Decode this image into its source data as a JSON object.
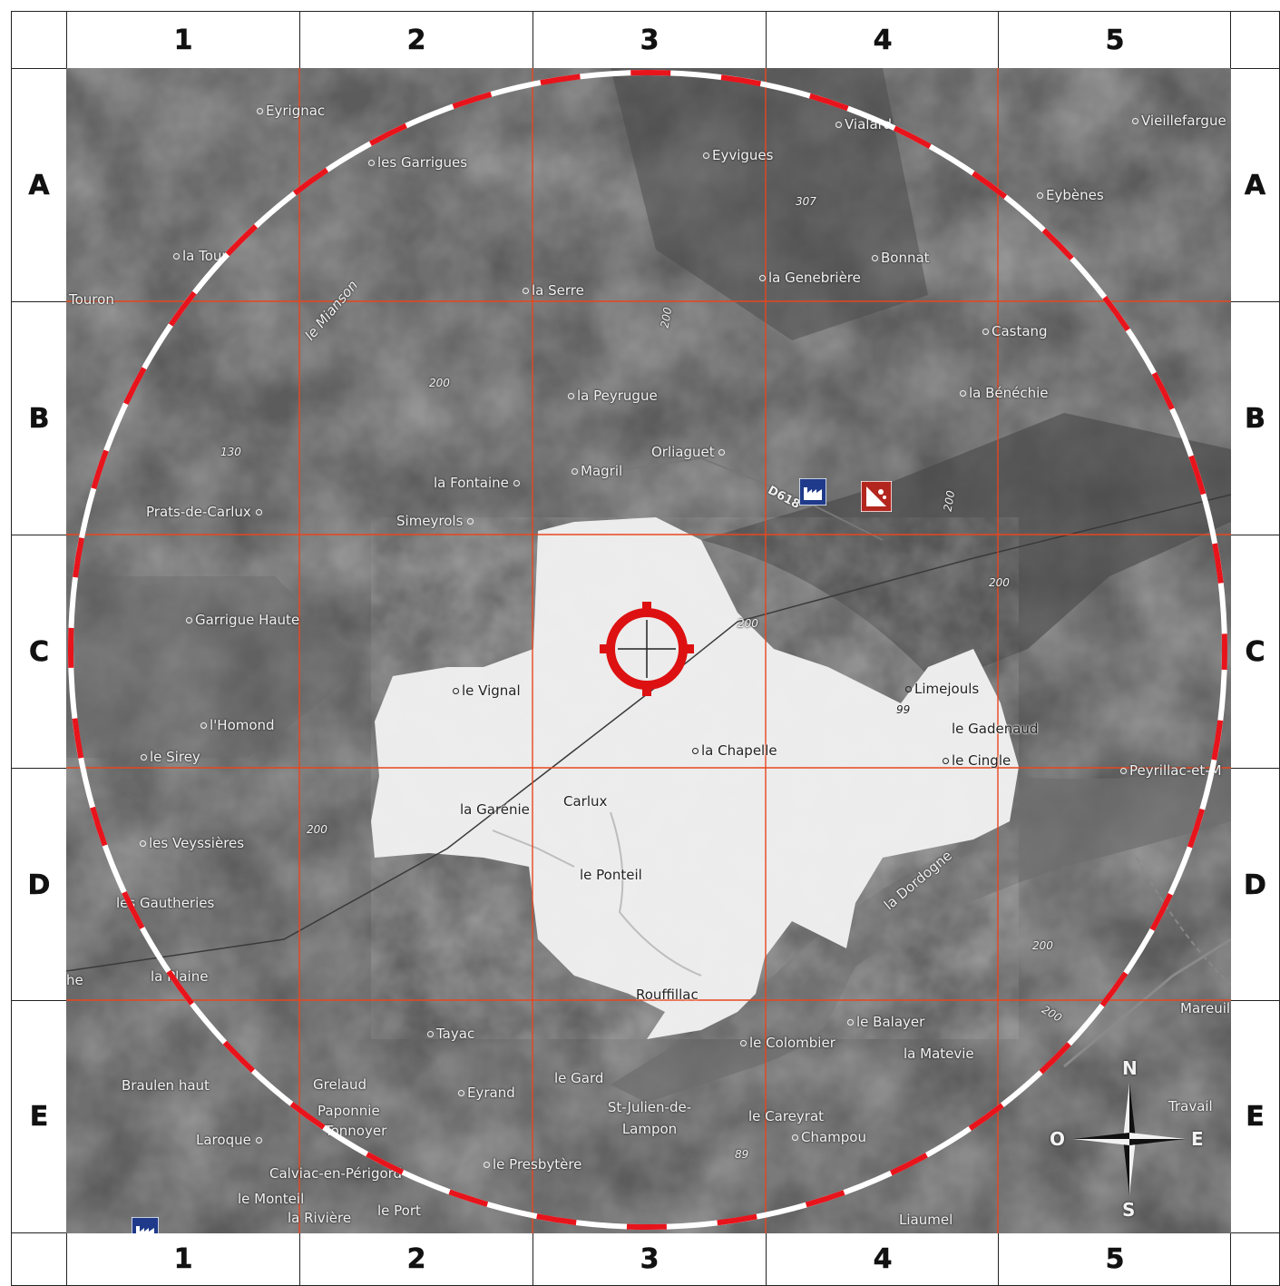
{
  "columns": [
    "1",
    "2",
    "3",
    "4",
    "5"
  ],
  "rows": [
    "A",
    "B",
    "C",
    "D",
    "E"
  ],
  "compass": {
    "north": "N",
    "south": "S",
    "east": "E",
    "west": "O"
  },
  "road_label": "D618",
  "river_label": "la Dordogne",
  "elevations": [
    "307",
    "200",
    "130",
    "200",
    "200",
    "200",
    "200",
    "200",
    "99",
    "89",
    "200",
    "200"
  ],
  "places": [
    "Eyrignac",
    "les Garrigues",
    "Eyvigues",
    "Vialard",
    "Vieillefargue",
    "Eybènes",
    "la Tour",
    "Touron",
    "la Serre",
    "la Genebrière",
    "Bonnat",
    "Castang",
    "le Mianson",
    "la Peyrugue",
    "la Bénéchie",
    "Orliaguet",
    "Magril",
    "la Fontaine",
    "Prats-de-Carlux",
    "Simeyrols",
    "Garrigue Haute",
    "le Vignal",
    "Limejouls",
    "l'Homond",
    "le Sirey",
    "la Chapelle",
    "le Gadenaud",
    "le Cingle",
    "Peyrillac-et-M",
    "la Garénie",
    "Carlux",
    "les Veyssières",
    "le Ponteil",
    "les Gautheries",
    "la Plaine",
    "Rouffillac",
    "Mareuil",
    "Tayac",
    "le Balayer",
    "le Colombier",
    "la Matevie",
    "Braulen haut",
    "Grelaud",
    "le Gard",
    "Eyrand",
    "Paponnie",
    "St-Julien-de-Lampon",
    "le Careyrat",
    "Travail",
    "Laroque",
    "Tonnoyer",
    "Champou",
    "Calviac-en-Périgord",
    "le Presbytère",
    "le Monteil",
    "le Port",
    "la Rivière",
    "Liaumel",
    "he"
  ],
  "colors": {
    "grid": "#e8461e",
    "ring_red": "#e8141c",
    "ring_white": "#ffffff",
    "target": "#dd1111",
    "terrain": "#5a5a5a",
    "highlight": "#eeeeee"
  },
  "icons": [
    "factory-icon",
    "fallen-rock-icon",
    "factory-icon",
    "target-crosshair-icon",
    "compass-rose-icon"
  ]
}
